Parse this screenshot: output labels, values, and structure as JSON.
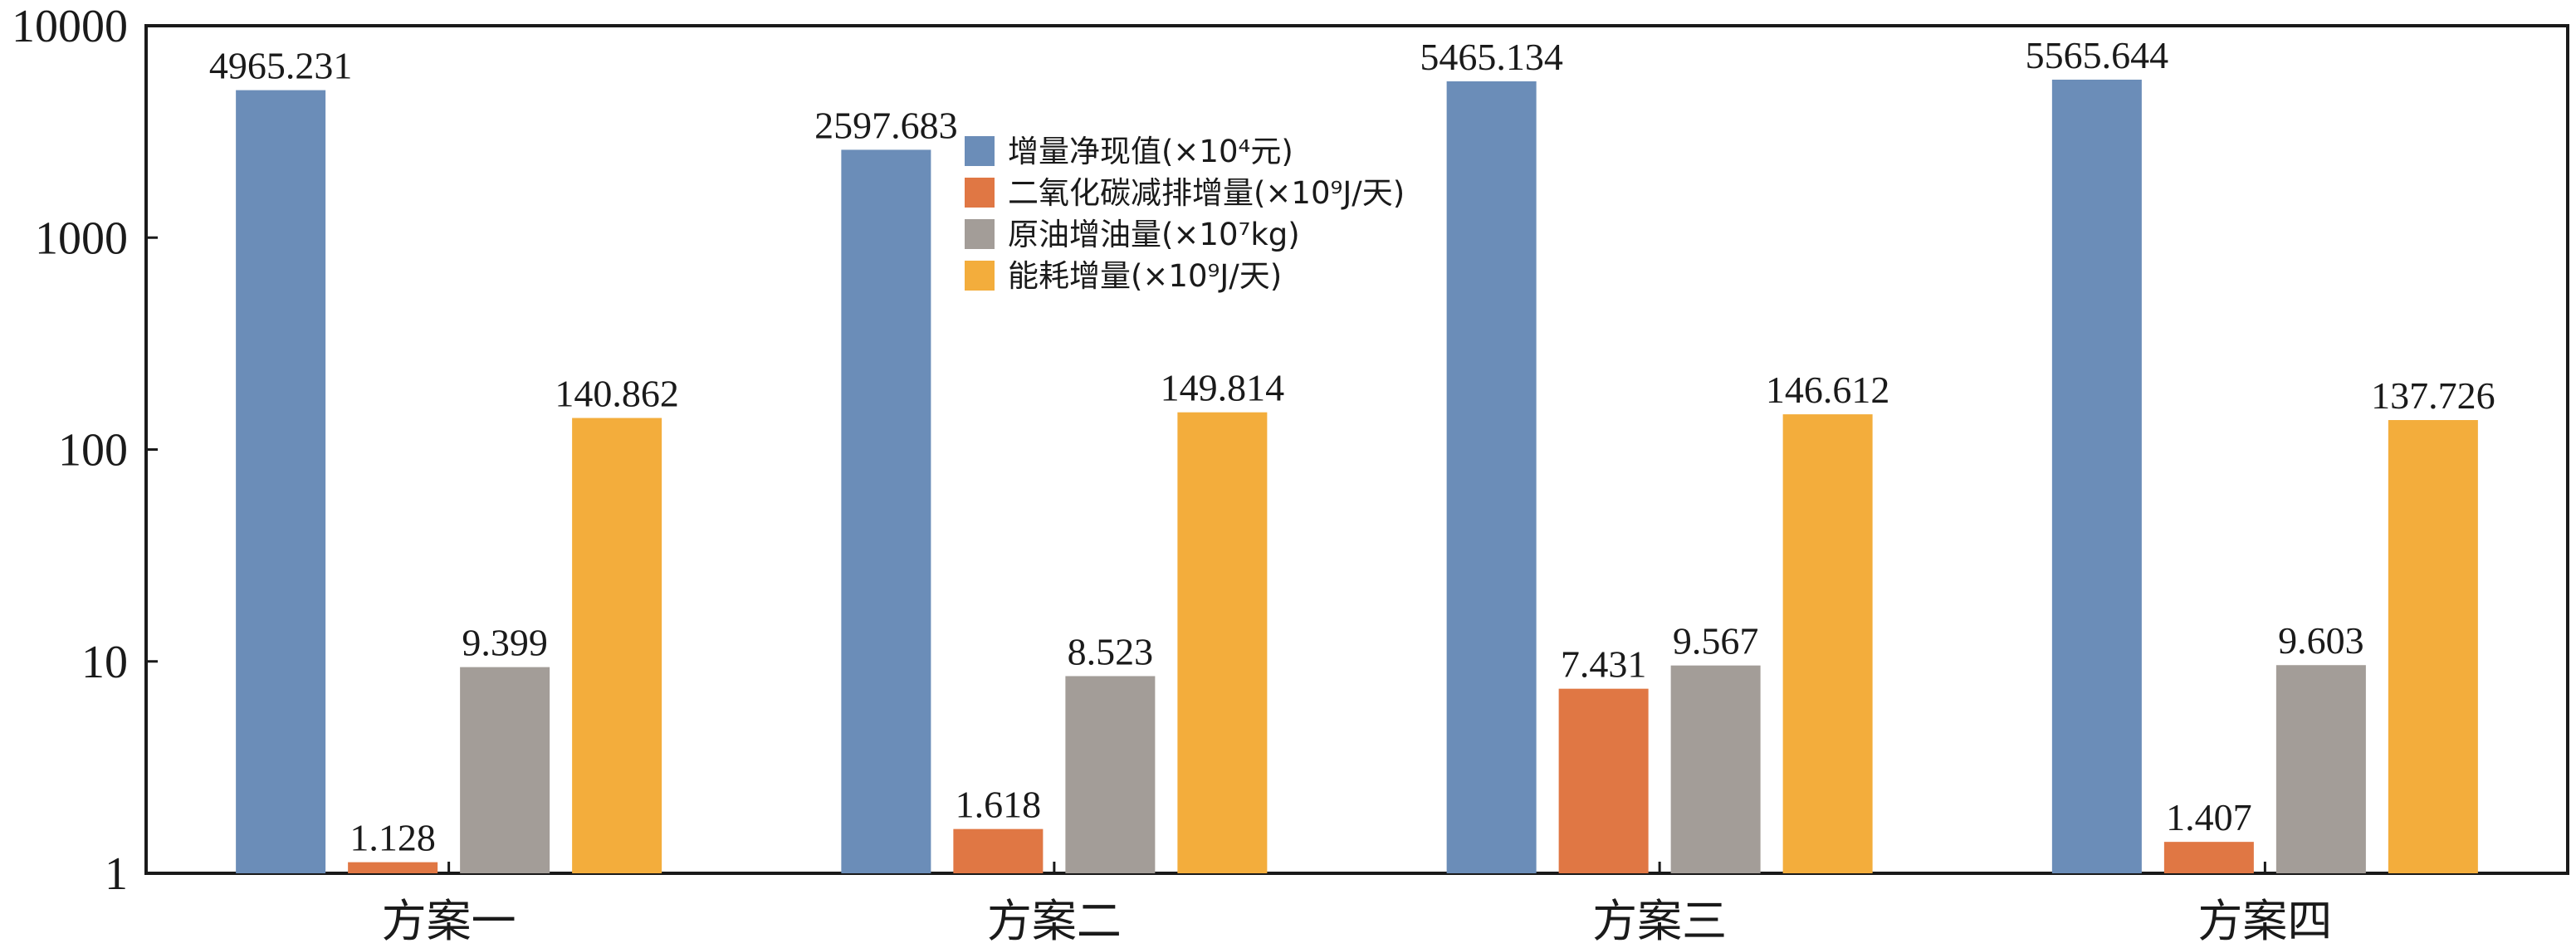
{
  "chart_data": {
    "type": "bar",
    "categories": [
      "方案一",
      "方案二",
      "方案三",
      "方案四"
    ],
    "series": [
      {
        "name": "增量净现值(×10⁴元)",
        "color": "#6b8db8",
        "values": [
          4965.231,
          2597.683,
          5465.134,
          5565.644
        ],
        "labels": [
          "4965.231",
          "2597.683",
          "5465.134",
          "5565.644"
        ]
      },
      {
        "name": "二氧化碳减排增量(×10⁹J/天)",
        "color": "#e07744",
        "values": [
          1.128,
          1.618,
          7.431,
          1.407
        ],
        "labels": [
          "1.128",
          "1.618",
          "7.431",
          "1.407"
        ]
      },
      {
        "name": "原油增油量(×10⁷kg)",
        "color": "#a39d98",
        "values": [
          9.399,
          8.523,
          9.567,
          9.603
        ],
        "labels": [
          "9.399",
          "8.523",
          "9.567",
          "9.603"
        ]
      },
      {
        "name": "能耗增量(×10⁹J/天)",
        "color": "#f3ad3c",
        "values": [
          140.862,
          149.814,
          146.612,
          137.726
        ],
        "labels": [
          "140.862",
          "149.814",
          "146.612",
          "137.726"
        ]
      }
    ],
    "yscale": "log",
    "ylim": [
      1,
      10000
    ],
    "yticks": [
      "1",
      "10",
      "100",
      "1000",
      "10000"
    ],
    "ytick_values": [
      1,
      10,
      100,
      1000,
      10000
    ],
    "legend_position": "top-center",
    "grid": false
  }
}
